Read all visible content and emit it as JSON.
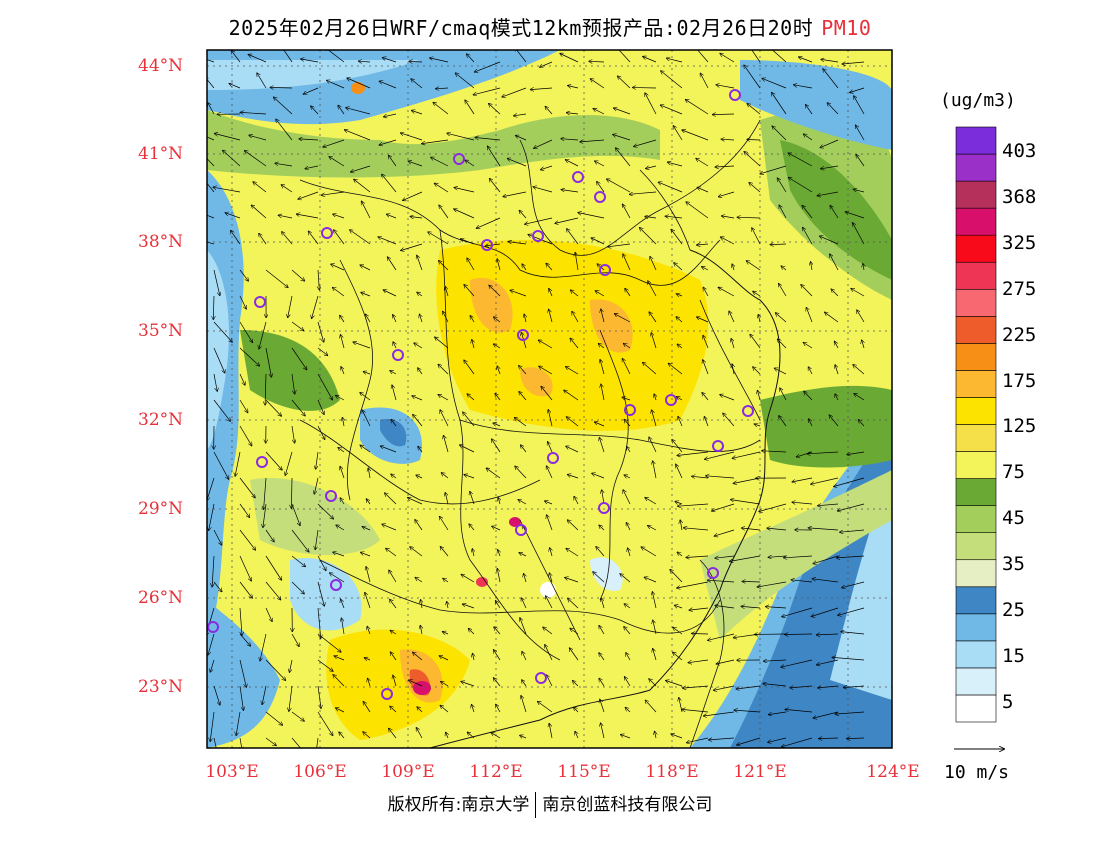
{
  "title": "2025年02月26日WRF/cmaq模式12km预报产品:02月26日20时",
  "pollutant": "PM10",
  "unit": "(ug/m3)",
  "lat_ticks": [
    "44°N",
    "41°N",
    "38°N",
    "35°N",
    "32°N",
    "29°N",
    "26°N",
    "23°N"
  ],
  "lon_ticks": [
    "103°E",
    "106°E",
    "109°E",
    "112°E",
    "115°E",
    "118°E",
    "121°E",
    "124°E"
  ],
  "colorbar": {
    "labels": [
      "403",
      "368",
      "325",
      "275",
      "225",
      "175",
      "125",
      "75",
      "45",
      "35",
      "25",
      "15",
      "5"
    ],
    "colors": [
      "#ffffff",
      "#d8f0fa",
      "#a9dcf5",
      "#70b8e6",
      "#3f86c4",
      "#e6eec4",
      "#c4de7c",
      "#a4ce5c",
      "#6aaa34",
      "#f3f35a",
      "#f6e04a",
      "#fde300",
      "#fbb830",
      "#f78f16",
      "#ee5c2c",
      "#f76870",
      "#ee3555",
      "#f90a1a",
      "#d90f6c",
      "#b5305a",
      "#9a30c8",
      "#7b2ddc"
    ]
  },
  "wind_reference": "10 m/s",
  "copyright_left": "版权所有:南京大学",
  "copyright_right": "南京创蓝科技有限公司"
}
